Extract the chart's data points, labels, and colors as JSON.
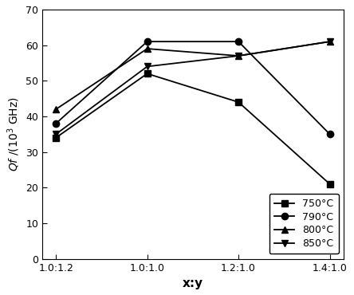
{
  "x_labels": [
    "1.0:1.2",
    "1.0:1.0",
    "1.2:1.0",
    "1.4:1.0"
  ],
  "x_positions": [
    0,
    1,
    2,
    3
  ],
  "series": [
    {
      "label": "750°C",
      "values": [
        34,
        52,
        44,
        21
      ],
      "marker": "s",
      "color": "#000000"
    },
    {
      "label": "790°C",
      "values": [
        38,
        61,
        61,
        35
      ],
      "marker": "o",
      "color": "#000000"
    },
    {
      "label": "800°C",
      "values": [
        42,
        59,
        57,
        61
      ],
      "marker": "^",
      "color": "#000000"
    },
    {
      "label": "850°C",
      "values": [
        35,
        54,
        57,
        61
      ],
      "marker": "v",
      "color": "#000000"
    }
  ],
  "xlabel": "x:y",
  "ylabel": "Qf /(10³ GHz)",
  "ylim": [
    0,
    70
  ],
  "yticks": [
    0,
    10,
    20,
    30,
    40,
    50,
    60,
    70
  ],
  "legend_loc": "lower right",
  "linewidth": 1.3,
  "markersize": 6,
  "background_color": "#ffffff",
  "legend_fontsize": 9,
  "tick_fontsize": 9,
  "xlabel_fontsize": 11,
  "ylabel_fontsize": 10
}
